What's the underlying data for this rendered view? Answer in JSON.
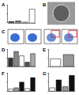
{
  "chart_data": [
    {
      "type": "bar",
      "title": "A",
      "categories": [
        null,
        null,
        null,
        null
      ],
      "values": [
        5,
        8,
        3,
        60
      ],
      "colors": [
        "#222222",
        "#777777",
        "#bbbbbb",
        "#ffffff"
      ],
      "ylim": [
        0,
        80
      ],
      "yticks": [
        0,
        40,
        80
      ],
      "grid": false,
      "tick_labels": false
    },
    {
      "type": "bar",
      "title": "D",
      "categories": [
        null,
        null,
        null,
        null,
        null
      ],
      "values": [
        20,
        35,
        25,
        10,
        30
      ],
      "colors": [
        "#333333",
        "#888888",
        "#ffffff",
        "#555555",
        "#aaaaaa"
      ],
      "ylim": [
        0,
        40
      ],
      "yticks": [
        0,
        20,
        40
      ],
      "grid": false,
      "tick_labels": false
    },
    {
      "type": "bar",
      "title": "E",
      "categories": [
        null,
        null
      ],
      "values": [
        45,
        70
      ],
      "colors": [
        "#ffffff",
        "#999999"
      ],
      "ylim": [
        0,
        100
      ],
      "yticks": [
        0,
        50,
        100
      ],
      "grid": false,
      "tick_labels": false
    },
    {
      "type": "bar",
      "title": "F",
      "categories": [
        null,
        null,
        null,
        null,
        null
      ],
      "values": [
        10,
        15,
        40,
        12,
        60
      ],
      "colors": [
        "#ffffff",
        "#999999",
        "#111111",
        "#ffffff",
        "#111111"
      ],
      "ylim": [
        0,
        80
      ],
      "yticks": [
        0,
        40,
        80
      ],
      "grid": false,
      "tick_labels": false
    },
    {
      "type": "bar",
      "title": "G",
      "categories": [
        null,
        null,
        null,
        null
      ],
      "values": [
        15,
        50,
        20,
        70
      ],
      "colors": [
        "#ffffff",
        "#111111",
        "#999999",
        "#111111"
      ],
      "ylim": [
        0,
        80
      ],
      "yticks": [
        0,
        40,
        80
      ],
      "grid": false,
      "tick_labels": false
    }
  ],
  "image_panels": [
    {
      "label": "B"
    },
    {
      "label": "C"
    }
  ]
}
